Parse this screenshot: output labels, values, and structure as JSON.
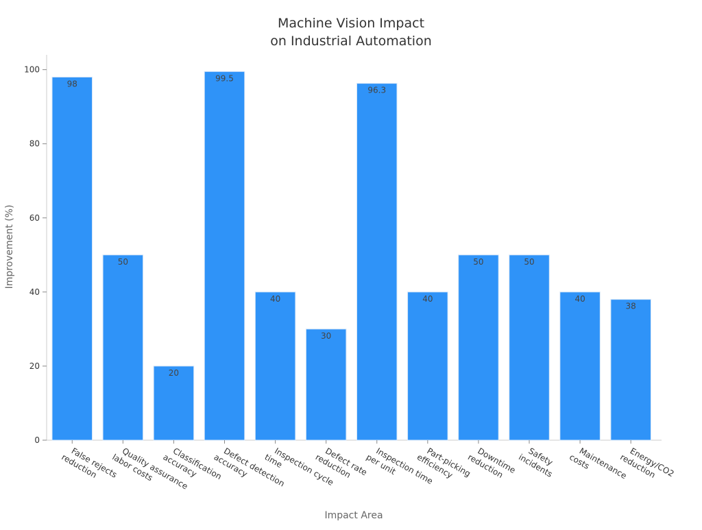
{
  "chart_data": {
    "type": "bar",
    "title_lines": [
      "Machine Vision Impact",
      "on Industrial Automation"
    ],
    "xlabel": "Impact Area",
    "ylabel": "Improvement (%)",
    "ylim": [
      0,
      104
    ],
    "yticks": [
      0,
      20,
      40,
      60,
      80,
      100
    ],
    "grid": false,
    "categories": [
      [
        "False rejects",
        "reduction"
      ],
      [
        "Quality assurance",
        "labor costs"
      ],
      [
        "Classification",
        "accuracy"
      ],
      [
        "Defect detection",
        "accuracy"
      ],
      [
        "Inspection cycle",
        "time"
      ],
      [
        "Defect rate",
        "reduction"
      ],
      [
        "Inspection time",
        "per unit"
      ],
      [
        "Part-picking",
        "efficiency"
      ],
      [
        "Downtime",
        "reduction"
      ],
      [
        "Safety",
        "incidents"
      ],
      [
        "Maintenance",
        "costs"
      ],
      [
        "Energy/CO2",
        "reduction"
      ]
    ],
    "values": [
      98,
      50,
      20,
      99.5,
      40,
      30,
      96.3,
      40,
      50,
      50,
      40,
      38
    ],
    "bar_color": "#2f93f8"
  }
}
